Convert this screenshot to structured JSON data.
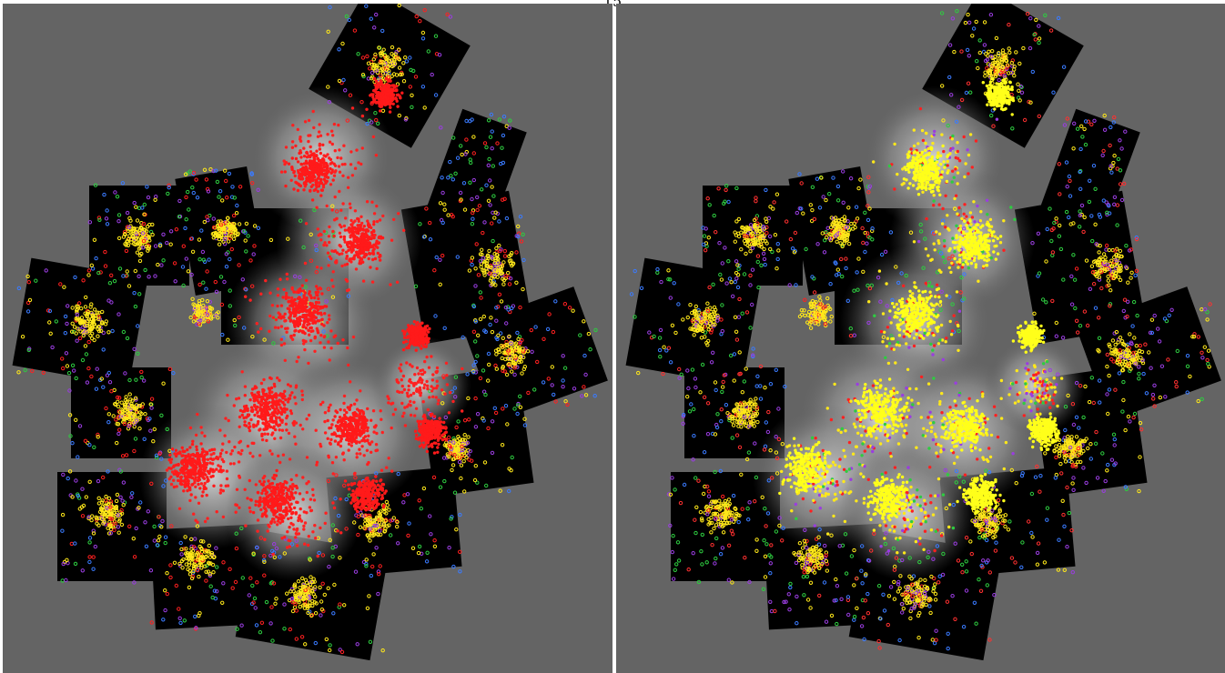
{
  "page_number": "15",
  "figure": {
    "panels": [
      {
        "id": "left",
        "highlight_color": "#ff1a1a"
      },
      {
        "id": "right",
        "highlight_color": "#ffff1a"
      }
    ],
    "background_color": "#646464",
    "tile_color": "#000000",
    "dot_colors": [
      "#ffe81a",
      "#9a3de0",
      "#3a7bff",
      "#ff2020",
      "#2ecc40"
    ]
  }
}
